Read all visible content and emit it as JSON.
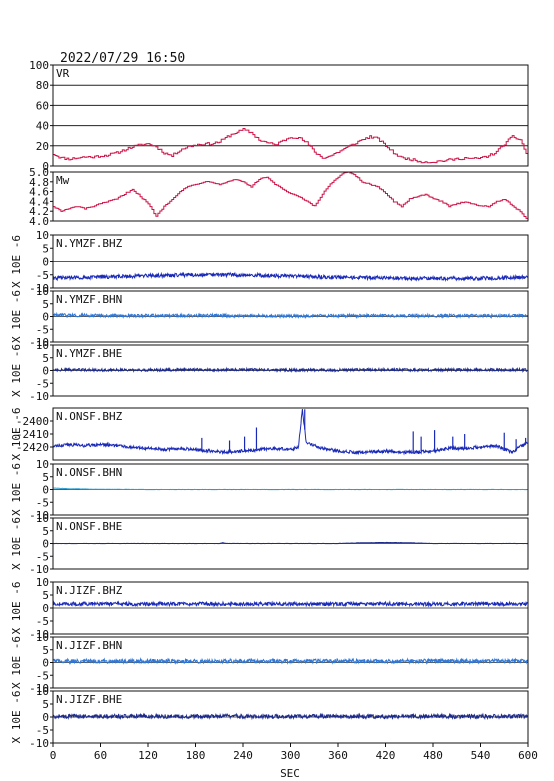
{
  "header": {
    "timestamp": "2022/07/29  16:50"
  },
  "chart_data": {
    "type": "line",
    "xlabel": "SEC",
    "xlim": [
      0,
      600
    ],
    "xticks": [
      "0",
      "60",
      "120",
      "180",
      "240",
      "300",
      "360",
      "420",
      "480",
      "540",
      "600"
    ],
    "panels": [
      {
        "name": "VR",
        "ylabel": "",
        "ylim": [
          0,
          100
        ],
        "yticks": [
          "100",
          "80",
          "60",
          "40",
          "20",
          "0"
        ],
        "grid": "horizontal",
        "color": "#cc1144",
        "style": "step",
        "x": [
          0,
          10,
          20,
          30,
          40,
          50,
          60,
          70,
          80,
          90,
          100,
          110,
          120,
          130,
          140,
          150,
          160,
          170,
          180,
          190,
          200,
          210,
          220,
          230,
          240,
          250,
          260,
          270,
          280,
          290,
          300,
          310,
          320,
          330,
          340,
          350,
          360,
          370,
          380,
          390,
          400,
          410,
          420,
          430,
          440,
          450,
          460,
          470,
          480,
          490,
          500,
          510,
          520,
          530,
          540,
          550,
          560,
          570,
          580,
          590,
          600
        ],
        "values": [
          12,
          8,
          7,
          8,
          9,
          9,
          10,
          11,
          13,
          16,
          19,
          21,
          22,
          19,
          13,
          10,
          16,
          19,
          21,
          22,
          22,
          24,
          29,
          33,
          36,
          33,
          26,
          23,
          21,
          25,
          29,
          28,
          23,
          14,
          8,
          10,
          14,
          18,
          22,
          26,
          29,
          27,
          20,
          13,
          8,
          7,
          5,
          4,
          4,
          5,
          6,
          7,
          8,
          7,
          8,
          10,
          14,
          22,
          29,
          26,
          8
        ]
      },
      {
        "name": "Mw",
        "ylabel": "",
        "ylim": [
          4.0,
          5.0
        ],
        "yticks": [
          "5.0",
          "4.8",
          "4.6",
          "4.4",
          "4.2",
          "4.0"
        ],
        "grid": "none",
        "color": "#cc1144",
        "style": "step",
        "x": [
          0,
          10,
          20,
          30,
          40,
          50,
          60,
          70,
          80,
          90,
          100,
          110,
          120,
          130,
          140,
          150,
          160,
          170,
          180,
          190,
          200,
          210,
          220,
          230,
          240,
          250,
          260,
          270,
          280,
          290,
          300,
          310,
          320,
          330,
          340,
          350,
          360,
          370,
          380,
          390,
          400,
          410,
          420,
          430,
          440,
          450,
          460,
          470,
          480,
          490,
          500,
          510,
          520,
          530,
          540,
          550,
          560,
          570,
          580,
          590,
          600
        ],
        "values": [
          4.3,
          4.2,
          4.25,
          4.3,
          4.25,
          4.3,
          4.35,
          4.4,
          4.45,
          4.55,
          4.65,
          4.5,
          4.35,
          4.1,
          4.3,
          4.45,
          4.6,
          4.7,
          4.75,
          4.8,
          4.8,
          4.75,
          4.8,
          4.85,
          4.8,
          4.7,
          4.85,
          4.9,
          4.75,
          4.65,
          4.55,
          4.5,
          4.4,
          4.3,
          4.55,
          4.75,
          4.9,
          5.0,
          4.95,
          4.8,
          4.75,
          4.7,
          4.55,
          4.4,
          4.3,
          4.45,
          4.5,
          4.55,
          4.45,
          4.4,
          4.3,
          4.35,
          4.4,
          4.35,
          4.3,
          4.3,
          4.4,
          4.45,
          4.3,
          4.2,
          4.0
        ]
      },
      {
        "name": "N.YMZF.BHZ",
        "ylabel": "X 10E -6",
        "ylim": [
          -10,
          10
        ],
        "yticks": [
          "10",
          "5",
          "0",
          "-5",
          "-10"
        ],
        "grid": "none",
        "color": "#1a2ab8",
        "x": [
          0,
          60,
          120,
          180,
          240,
          300,
          360,
          420,
          480,
          540,
          600
        ],
        "values": [
          -6.2,
          -5.8,
          -5.4,
          -5.0,
          -5.0,
          -5.6,
          -6.0,
          -6.2,
          -6.4,
          -6.3,
          -5.9
        ],
        "noise_amplitude": 0.7
      },
      {
        "name": "N.YMZF.BHN",
        "ylabel": "X 10E -6",
        "ylim": [
          -10,
          10
        ],
        "yticks": [
          "10",
          "5",
          "0",
          "-5",
          "-10"
        ],
        "grid": "none",
        "color": "#2f78d8",
        "x": [
          0,
          60,
          120,
          180,
          240,
          300,
          360,
          420,
          480,
          540,
          600
        ],
        "values": [
          0.5,
          0.4,
          0.3,
          0.4,
          0.3,
          0.2,
          0.3,
          0.4,
          0.3,
          0.3,
          0.4
        ],
        "noise_amplitude": 0.6
      },
      {
        "name": "N.YMZF.BHE",
        "ylabel": "X 10E -6",
        "ylim": [
          -10,
          10
        ],
        "yticks": [
          "10",
          "5",
          "0",
          "-5",
          "-10"
        ],
        "grid": "none",
        "color": "#1c2a8a",
        "x": [
          0,
          60,
          120,
          180,
          240,
          300,
          360,
          420,
          480,
          540,
          600
        ],
        "values": [
          0.3,
          0.2,
          0.2,
          0.3,
          0.3,
          0.2,
          0.2,
          0.3,
          0.2,
          0.3,
          0.2
        ],
        "noise_amplitude": 0.5
      },
      {
        "name": "N.ONSF.BHZ",
        "ylabel": "X 10E -6",
        "ylim": [
          -2430,
          -2390
        ],
        "yticks": [
          "-2400",
          "-2410",
          "-2420"
        ],
        "grid": "none",
        "color": "#1a2ab8",
        "x": [
          0,
          20,
          40,
          60,
          80,
          100,
          120,
          140,
          160,
          180,
          200,
          220,
          240,
          260,
          280,
          300,
          310,
          315,
          320,
          340,
          360,
          380,
          400,
          420,
          440,
          460,
          480,
          500,
          520,
          540,
          560,
          580,
          600
        ],
        "values": [
          -2419,
          -2418,
          -2419,
          -2418,
          -2419,
          -2420,
          -2421,
          -2422,
          -2421,
          -2422,
          -2423,
          -2424,
          -2423,
          -2422,
          -2421,
          -2422,
          -2420,
          -2391,
          -2417,
          -2421,
          -2423,
          -2424,
          -2424,
          -2423,
          -2424,
          -2424,
          -2423,
          -2421,
          -2421,
          -2420,
          -2419,
          -2424,
          -2416
        ],
        "spikes": [
          {
            "x": 188,
            "value": -2413
          },
          {
            "x": 223,
            "value": -2415
          },
          {
            "x": 242,
            "value": -2412
          },
          {
            "x": 257,
            "value": -2405
          },
          {
            "x": 318,
            "value": -2391
          },
          {
            "x": 455,
            "value": -2408
          },
          {
            "x": 465,
            "value": -2412
          },
          {
            "x": 482,
            "value": -2407
          },
          {
            "x": 505,
            "value": -2412
          },
          {
            "x": 520,
            "value": -2410
          },
          {
            "x": 570,
            "value": -2409
          },
          {
            "x": 585,
            "value": -2414
          },
          {
            "x": 597,
            "value": -2413
          }
        ],
        "noise_amplitude": 1.2
      },
      {
        "name": "N.ONSF.BHN",
        "ylabel": "X 10E -6",
        "ylim": [
          -10,
          10
        ],
        "yticks": [
          "10",
          "5",
          "0",
          "-5",
          "-10"
        ],
        "grid": "none",
        "color": "#2f9fd0",
        "x": [
          0,
          20,
          40,
          60,
          120,
          180,
          240,
          300,
          360,
          420,
          480,
          540,
          600
        ],
        "values": [
          0.6,
          0.3,
          0.2,
          0.1,
          0.0,
          0.0,
          0.0,
          0.0,
          0.0,
          0.0,
          0.0,
          0.0,
          0.0
        ],
        "noise_amplitude": 0.05
      },
      {
        "name": "N.ONSF.BHE",
        "ylabel": "X 10E -6",
        "ylim": [
          -10,
          10
        ],
        "yticks": [
          "10",
          "5",
          "0",
          "-5",
          "-10"
        ],
        "grid": "none",
        "color": "#1c2a8a",
        "x": [
          0,
          60,
          120,
          180,
          210,
          215,
          220,
          240,
          300,
          360,
          390,
          420,
          450,
          480,
          540,
          600
        ],
        "values": [
          0.0,
          0.0,
          0.0,
          0.0,
          0.0,
          0.3,
          0.0,
          0.0,
          0.0,
          0.0,
          0.3,
          0.4,
          0.3,
          0.0,
          0.0,
          0.0
        ],
        "noise_amplitude": 0.05
      },
      {
        "name": "N.JIZF.BHZ",
        "ylabel": "X 10E -6",
        "ylim": [
          -10,
          10
        ],
        "yticks": [
          "10",
          "5",
          "0",
          "-5",
          "-10"
        ],
        "grid": "none",
        "color": "#1a2ab8",
        "x": [
          0,
          60,
          120,
          180,
          240,
          300,
          360,
          420,
          480,
          540,
          600
        ],
        "values": [
          1.6,
          1.6,
          1.5,
          1.6,
          1.5,
          1.6,
          1.5,
          1.6,
          1.5,
          1.6,
          1.6
        ],
        "noise_amplitude": 0.7
      },
      {
        "name": "N.JIZF.BHN",
        "ylabel": "X 10E -6",
        "ylim": [
          -10,
          10
        ],
        "yticks": [
          "10",
          "5",
          "0",
          "-5",
          "-10"
        ],
        "grid": "none",
        "color": "#2f78d8",
        "x": [
          0,
          60,
          120,
          180,
          240,
          300,
          360,
          420,
          480,
          540,
          600
        ],
        "values": [
          0.6,
          0.5,
          0.6,
          0.5,
          0.6,
          0.5,
          0.6,
          0.5,
          0.6,
          0.5,
          0.6
        ],
        "noise_amplitude": 0.8
      },
      {
        "name": "N.JIZF.BHE",
        "ylabel": "X 10E -6",
        "ylim": [
          -10,
          10
        ],
        "yticks": [
          "10",
          "5",
          "0",
          "-5",
          "-10"
        ],
        "grid": "none",
        "color": "#1c2a8a",
        "x": [
          0,
          60,
          120,
          180,
          240,
          300,
          360,
          420,
          480,
          540,
          600
        ],
        "values": [
          0.3,
          0.2,
          0.3,
          0.2,
          0.3,
          0.2,
          0.3,
          0.2,
          0.3,
          0.2,
          0.3
        ],
        "noise_amplitude": 0.8
      }
    ]
  }
}
